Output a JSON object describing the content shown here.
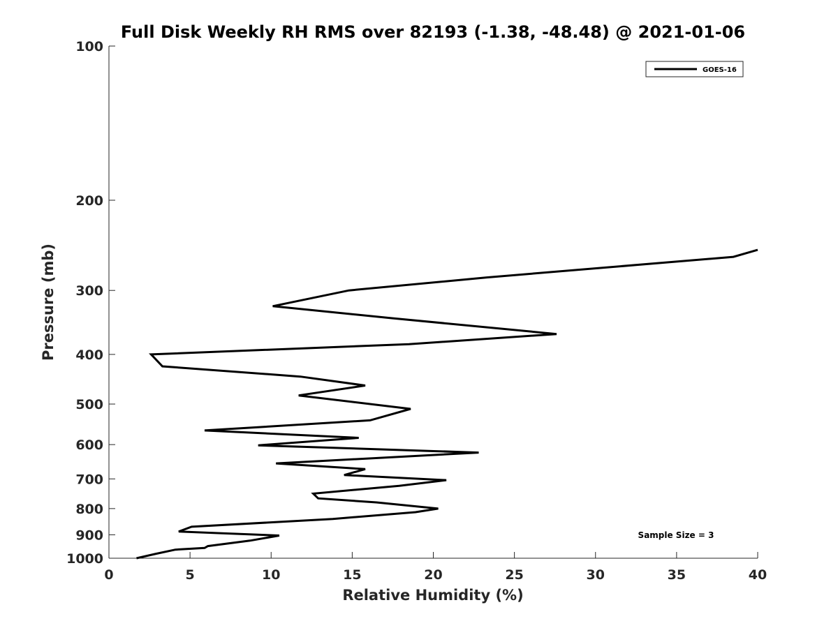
{
  "chart_data": {
    "type": "line",
    "title": "Full Disk Weekly RH RMS over 82193 (-1.38, -48.48) @ 2021-01-06",
    "xlabel": "Relative Humidity (%)",
    "ylabel": "Pressure (mb)",
    "xlim": [
      0,
      40
    ],
    "ylim": [
      1000,
      100
    ],
    "yscale": "log",
    "y_reversed": true,
    "x_ticks": [
      "0",
      "5",
      "10",
      "15",
      "20",
      "25",
      "30",
      "35",
      "40"
    ],
    "y_ticks": [
      "100",
      "200",
      "300",
      "400",
      "500",
      "600",
      "700",
      "800",
      "900",
      "1000"
    ],
    "grid": false,
    "legend_position": "top-right",
    "annotation": "Sample Size = 3",
    "line_color": "#000000",
    "series": [
      {
        "name": "GOES-16",
        "points": [
          {
            "x": 40.0,
            "y": 250
          },
          {
            "x": 38.5,
            "y": 258
          },
          {
            "x": 23.3,
            "y": 283
          },
          {
            "x": 14.8,
            "y": 300
          },
          {
            "x": 10.1,
            "y": 322
          },
          {
            "x": 17.5,
            "y": 340
          },
          {
            "x": 27.6,
            "y": 365
          },
          {
            "x": 18.5,
            "y": 382
          },
          {
            "x": 2.6,
            "y": 400
          },
          {
            "x": 3.3,
            "y": 422
          },
          {
            "x": 11.8,
            "y": 442
          },
          {
            "x": 15.8,
            "y": 460
          },
          {
            "x": 11.7,
            "y": 481
          },
          {
            "x": 18.6,
            "y": 511
          },
          {
            "x": 16.1,
            "y": 538
          },
          {
            "x": 5.9,
            "y": 563
          },
          {
            "x": 15.4,
            "y": 582
          },
          {
            "x": 9.2,
            "y": 602
          },
          {
            "x": 22.8,
            "y": 622
          },
          {
            "x": 10.3,
            "y": 653
          },
          {
            "x": 15.8,
            "y": 670
          },
          {
            "x": 14.5,
            "y": 688
          },
          {
            "x": 20.8,
            "y": 704
          },
          {
            "x": 17.9,
            "y": 722
          },
          {
            "x": 12.6,
            "y": 748
          },
          {
            "x": 12.9,
            "y": 764
          },
          {
            "x": 16.5,
            "y": 778
          },
          {
            "x": 20.3,
            "y": 800
          },
          {
            "x": 18.9,
            "y": 813
          },
          {
            "x": 13.8,
            "y": 838
          },
          {
            "x": 5.1,
            "y": 868
          },
          {
            "x": 4.3,
            "y": 887
          },
          {
            "x": 10.5,
            "y": 903
          },
          {
            "x": 8.7,
            "y": 924
          },
          {
            "x": 6.1,
            "y": 947
          },
          {
            "x": 5.9,
            "y": 955
          },
          {
            "x": 4.1,
            "y": 962
          },
          {
            "x": 2.9,
            "y": 980
          },
          {
            "x": 1.7,
            "y": 1000
          }
        ]
      }
    ]
  }
}
